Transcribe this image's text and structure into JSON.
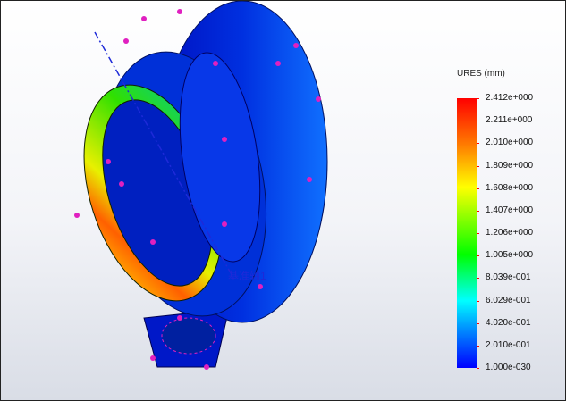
{
  "legend": {
    "title": "URES (mm)",
    "values": [
      "2.412e+000",
      "2.211e+000",
      "2.010e+000",
      "1.809e+000",
      "1.608e+000",
      "1.407e+000",
      "1.206e+000",
      "1.005e+000",
      "8.039e-001",
      "6.029e-001",
      "4.020e-001",
      "2.010e-001",
      "1.000e-030"
    ],
    "colormap": [
      "#ff0000",
      "#ff7a00",
      "#ffff00",
      "#00ff00",
      "#00ffff",
      "#0080ff",
      "#0000ff"
    ]
  },
  "model": {
    "axis_label": "基准轴1",
    "load_arrow_color": "#e020c0",
    "axis_color": "#1e2ad8"
  }
}
